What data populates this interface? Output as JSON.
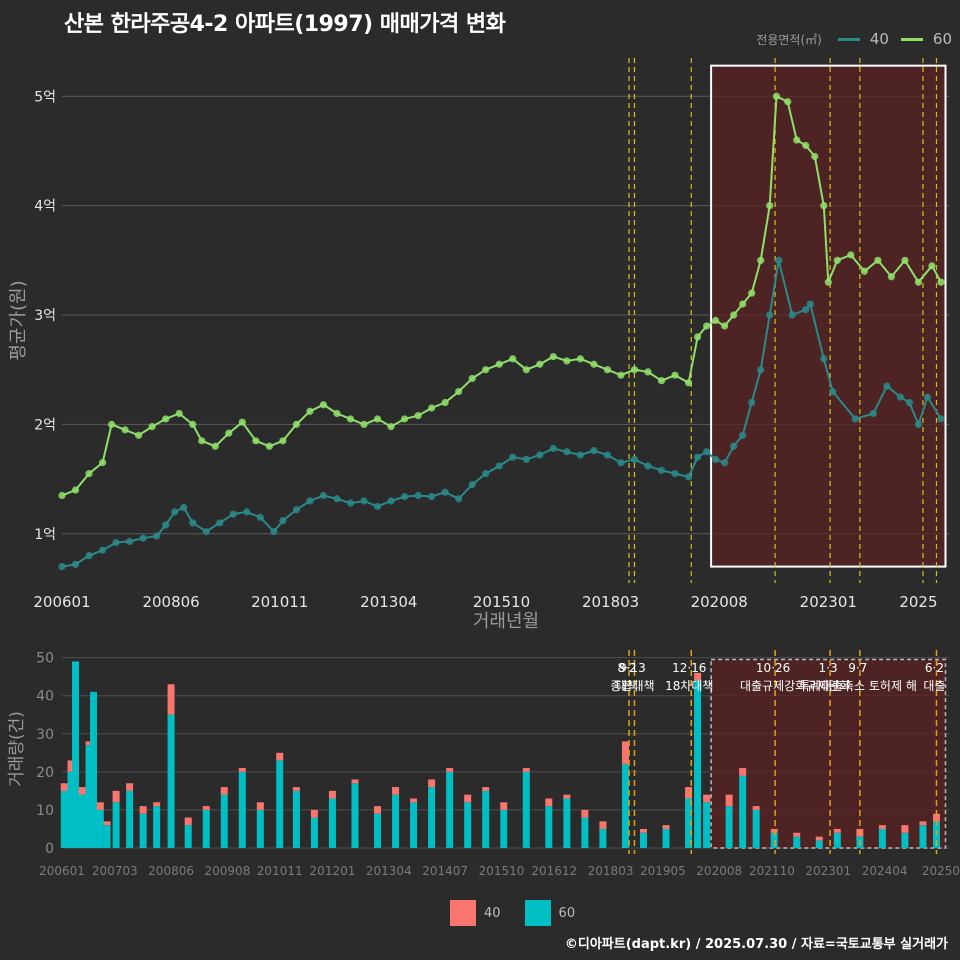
{
  "title": "산본 한라주공4-2 아파트(1997) 매매가격 변화",
  "legend": {
    "title": "전용면적(㎡)",
    "items": [
      {
        "label": "40",
        "line_color": "#2a8a8a",
        "bar_color": "#f8766d"
      },
      {
        "label": "60",
        "line_color": "#8fe06a",
        "bar_color": "#00bfc4"
      }
    ]
  },
  "footer": "©디아파트(dapt.kr) / 2025.07.30 / 자료=국토교통부 실거래가",
  "chart_data": [
    {
      "type": "line",
      "ylabel": "평균가(원)",
      "xlabel": "거래년월",
      "ylim": [
        0.55,
        5.35
      ],
      "xlim": [
        2006.0,
        2025.7
      ],
      "y_ticks": [
        {
          "v": 1,
          "label": "1억"
        },
        {
          "v": 2,
          "label": "2억"
        },
        {
          "v": 3,
          "label": "3억"
        },
        {
          "v": 4,
          "label": "4억"
        },
        {
          "v": 5,
          "label": "5억"
        }
      ],
      "x_ticks": [
        {
          "v": 2006.0,
          "label": "200601"
        },
        {
          "v": 2008.42,
          "label": "200806"
        },
        {
          "v": 2010.83,
          "label": "201011"
        },
        {
          "v": 2013.25,
          "label": "201304"
        },
        {
          "v": 2015.75,
          "label": "201510"
        },
        {
          "v": 2018.17,
          "label": "201803"
        },
        {
          "v": 2020.58,
          "label": "202008"
        },
        {
          "v": 2023.0,
          "label": "202301"
        },
        {
          "v": 2025.0,
          "label": "2025"
        }
      ],
      "highlight": {
        "x0": 2020.4,
        "x1": 2025.6,
        "y0": 0.7,
        "y1": 5.28,
        "color": "#5a2222"
      },
      "policy_lines": [
        2018.58,
        2018.7,
        2019.96,
        2021.82,
        2023.04,
        2023.7,
        2025.1,
        2025.4
      ],
      "series": [
        {
          "name": "40",
          "color": "#2a8a8a",
          "points": [
            [
              2006.0,
              0.7
            ],
            [
              2006.3,
              0.72
            ],
            [
              2006.6,
              0.8
            ],
            [
              2006.9,
              0.85
            ],
            [
              2007.2,
              0.92
            ],
            [
              2007.5,
              0.93
            ],
            [
              2007.8,
              0.96
            ],
            [
              2008.1,
              0.98
            ],
            [
              2008.3,
              1.08
            ],
            [
              2008.5,
              1.2
            ],
            [
              2008.7,
              1.24
            ],
            [
              2008.9,
              1.1
            ],
            [
              2009.2,
              1.02
            ],
            [
              2009.5,
              1.1
            ],
            [
              2009.8,
              1.18
            ],
            [
              2010.1,
              1.2
            ],
            [
              2010.4,
              1.15
            ],
            [
              2010.7,
              1.02
            ],
            [
              2010.9,
              1.12
            ],
            [
              2011.2,
              1.22
            ],
            [
              2011.5,
              1.3
            ],
            [
              2011.8,
              1.35
            ],
            [
              2012.1,
              1.32
            ],
            [
              2012.4,
              1.28
            ],
            [
              2012.7,
              1.3
            ],
            [
              2013.0,
              1.25
            ],
            [
              2013.3,
              1.3
            ],
            [
              2013.6,
              1.34
            ],
            [
              2013.9,
              1.35
            ],
            [
              2014.2,
              1.34
            ],
            [
              2014.5,
              1.38
            ],
            [
              2014.8,
              1.32
            ],
            [
              2015.1,
              1.45
            ],
            [
              2015.4,
              1.55
            ],
            [
              2015.7,
              1.62
            ],
            [
              2016.0,
              1.7
            ],
            [
              2016.3,
              1.68
            ],
            [
              2016.6,
              1.72
            ],
            [
              2016.9,
              1.78
            ],
            [
              2017.2,
              1.75
            ],
            [
              2017.5,
              1.72
            ],
            [
              2017.8,
              1.76
            ],
            [
              2018.1,
              1.72
            ],
            [
              2018.4,
              1.65
            ],
            [
              2018.7,
              1.68
            ],
            [
              2019.0,
              1.62
            ],
            [
              2019.3,
              1.58
            ],
            [
              2019.6,
              1.55
            ],
            [
              2019.9,
              1.52
            ],
            [
              2020.1,
              1.7
            ],
            [
              2020.3,
              1.75
            ],
            [
              2020.5,
              1.68
            ],
            [
              2020.7,
              1.65
            ],
            [
              2020.9,
              1.8
            ],
            [
              2021.1,
              1.9
            ],
            [
              2021.3,
              2.2
            ],
            [
              2021.5,
              2.5
            ],
            [
              2021.7,
              3.0
            ],
            [
              2021.9,
              3.5
            ],
            [
              2022.2,
              3.0
            ],
            [
              2022.5,
              3.05
            ],
            [
              2022.6,
              3.1
            ],
            [
              2022.9,
              2.6
            ],
            [
              2023.1,
              2.3
            ],
            [
              2023.6,
              2.05
            ],
            [
              2024.0,
              2.1
            ],
            [
              2024.3,
              2.35
            ],
            [
              2024.6,
              2.25
            ],
            [
              2024.8,
              2.2
            ],
            [
              2025.0,
              2.0
            ],
            [
              2025.2,
              2.25
            ],
            [
              2025.5,
              2.05
            ]
          ]
        },
        {
          "name": "60",
          "color": "#8fe06a",
          "points": [
            [
              2006.0,
              1.35
            ],
            [
              2006.3,
              1.4
            ],
            [
              2006.6,
              1.55
            ],
            [
              2006.9,
              1.65
            ],
            [
              2007.1,
              2.0
            ],
            [
              2007.4,
              1.95
            ],
            [
              2007.7,
              1.9
            ],
            [
              2008.0,
              1.98
            ],
            [
              2008.3,
              2.05
            ],
            [
              2008.6,
              2.1
            ],
            [
              2008.9,
              2.0
            ],
            [
              2009.1,
              1.85
            ],
            [
              2009.4,
              1.8
            ],
            [
              2009.7,
              1.92
            ],
            [
              2010.0,
              2.02
            ],
            [
              2010.3,
              1.85
            ],
            [
              2010.6,
              1.8
            ],
            [
              2010.9,
              1.85
            ],
            [
              2011.2,
              2.0
            ],
            [
              2011.5,
              2.12
            ],
            [
              2011.8,
              2.18
            ],
            [
              2012.1,
              2.1
            ],
            [
              2012.4,
              2.05
            ],
            [
              2012.7,
              2.0
            ],
            [
              2013.0,
              2.05
            ],
            [
              2013.3,
              1.98
            ],
            [
              2013.6,
              2.05
            ],
            [
              2013.9,
              2.08
            ],
            [
              2014.2,
              2.15
            ],
            [
              2014.5,
              2.2
            ],
            [
              2014.8,
              2.3
            ],
            [
              2015.1,
              2.42
            ],
            [
              2015.4,
              2.5
            ],
            [
              2015.7,
              2.55
            ],
            [
              2016.0,
              2.6
            ],
            [
              2016.3,
              2.5
            ],
            [
              2016.6,
              2.55
            ],
            [
              2016.9,
              2.62
            ],
            [
              2017.2,
              2.58
            ],
            [
              2017.5,
              2.6
            ],
            [
              2017.8,
              2.55
            ],
            [
              2018.1,
              2.5
            ],
            [
              2018.4,
              2.45
            ],
            [
              2018.7,
              2.5
            ],
            [
              2019.0,
              2.48
            ],
            [
              2019.3,
              2.4
            ],
            [
              2019.6,
              2.45
            ],
            [
              2019.9,
              2.38
            ],
            [
              2020.1,
              2.8
            ],
            [
              2020.3,
              2.9
            ],
            [
              2020.5,
              2.95
            ],
            [
              2020.7,
              2.9
            ],
            [
              2020.9,
              3.0
            ],
            [
              2021.1,
              3.1
            ],
            [
              2021.3,
              3.2
            ],
            [
              2021.5,
              3.5
            ],
            [
              2021.7,
              4.0
            ],
            [
              2021.85,
              5.0
            ],
            [
              2022.1,
              4.95
            ],
            [
              2022.3,
              4.6
            ],
            [
              2022.5,
              4.55
            ],
            [
              2022.7,
              4.45
            ],
            [
              2022.9,
              4.0
            ],
            [
              2023.0,
              3.3
            ],
            [
              2023.2,
              3.5
            ],
            [
              2023.5,
              3.55
            ],
            [
              2023.8,
              3.4
            ],
            [
              2024.1,
              3.5
            ],
            [
              2024.4,
              3.35
            ],
            [
              2024.7,
              3.5
            ],
            [
              2025.0,
              3.3
            ],
            [
              2025.3,
              3.45
            ],
            [
              2025.5,
              3.3
            ]
          ]
        }
      ]
    },
    {
      "type": "bar",
      "ylabel": "거래량(건)",
      "ylim": [
        0,
        52
      ],
      "y_ticks": [
        0,
        10,
        20,
        30,
        40,
        50
      ],
      "x_ticks": [
        {
          "v": 2006.0,
          "label": "200601"
        },
        {
          "v": 2007.17,
          "label": "200703"
        },
        {
          "v": 2008.42,
          "label": "200806"
        },
        {
          "v": 2009.67,
          "label": "200908"
        },
        {
          "v": 2010.83,
          "label": "201011"
        },
        {
          "v": 2012.0,
          "label": "201201"
        },
        {
          "v": 2013.25,
          "label": "201304"
        },
        {
          "v": 2014.5,
          "label": "201407"
        },
        {
          "v": 2015.75,
          "label": "201510"
        },
        {
          "v": 2016.92,
          "label": "201612"
        },
        {
          "v": 2018.17,
          "label": "201803"
        },
        {
          "v": 2019.33,
          "label": "201905"
        },
        {
          "v": 2020.58,
          "label": "202008"
        },
        {
          "v": 2021.75,
          "label": "202110"
        },
        {
          "v": 2023.0,
          "label": "202301"
        },
        {
          "v": 2024.25,
          "label": "202404"
        },
        {
          "v": 2025.5,
          "label": "20250"
        }
      ],
      "bars": [
        {
          "x": 2006.05,
          "v40": 2,
          "v60": 15
        },
        {
          "x": 2006.2,
          "v40": 3,
          "v60": 20
        },
        {
          "x": 2006.3,
          "v40": 0,
          "v60": 49
        },
        {
          "x": 2006.45,
          "v40": 2,
          "v60": 14
        },
        {
          "x": 2006.6,
          "v40": 1,
          "v60": 27
        },
        {
          "x": 2006.7,
          "v40": 0,
          "v60": 41
        },
        {
          "x": 2006.85,
          "v40": 2,
          "v60": 10
        },
        {
          "x": 2007.0,
          "v40": 1,
          "v60": 6
        },
        {
          "x": 2007.2,
          "v40": 3,
          "v60": 12
        },
        {
          "x": 2007.5,
          "v40": 2,
          "v60": 15
        },
        {
          "x": 2007.8,
          "v40": 2,
          "v60": 9
        },
        {
          "x": 2008.1,
          "v40": 1,
          "v60": 11
        },
        {
          "x": 2008.42,
          "v40": 8,
          "v60": 35
        },
        {
          "x": 2008.8,
          "v40": 2,
          "v60": 6
        },
        {
          "x": 2009.2,
          "v40": 1,
          "v60": 10
        },
        {
          "x": 2009.6,
          "v40": 2,
          "v60": 14
        },
        {
          "x": 2010.0,
          "v40": 1,
          "v60": 20
        },
        {
          "x": 2010.4,
          "v40": 2,
          "v60": 10
        },
        {
          "x": 2010.83,
          "v40": 2,
          "v60": 23
        },
        {
          "x": 2011.2,
          "v40": 1,
          "v60": 15
        },
        {
          "x": 2011.6,
          "v40": 2,
          "v60": 8
        },
        {
          "x": 2012.0,
          "v40": 2,
          "v60": 13
        },
        {
          "x": 2012.5,
          "v40": 1,
          "v60": 17
        },
        {
          "x": 2013.0,
          "v40": 2,
          "v60": 9
        },
        {
          "x": 2013.4,
          "v40": 2,
          "v60": 14
        },
        {
          "x": 2013.8,
          "v40": 1,
          "v60": 12
        },
        {
          "x": 2014.2,
          "v40": 2,
          "v60": 16
        },
        {
          "x": 2014.6,
          "v40": 1,
          "v60": 20
        },
        {
          "x": 2015.0,
          "v40": 2,
          "v60": 12
        },
        {
          "x": 2015.4,
          "v40": 1,
          "v60": 15
        },
        {
          "x": 2015.8,
          "v40": 2,
          "v60": 10
        },
        {
          "x": 2016.3,
          "v40": 1,
          "v60": 20
        },
        {
          "x": 2016.8,
          "v40": 2,
          "v60": 11
        },
        {
          "x": 2017.2,
          "v40": 1,
          "v60": 13
        },
        {
          "x": 2017.6,
          "v40": 2,
          "v60": 8
        },
        {
          "x": 2018.0,
          "v40": 2,
          "v60": 5
        },
        {
          "x": 2018.5,
          "v40": 6,
          "v60": 22
        },
        {
          "x": 2018.9,
          "v40": 1,
          "v60": 4
        },
        {
          "x": 2019.4,
          "v40": 1,
          "v60": 5
        },
        {
          "x": 2019.9,
          "v40": 3,
          "v60": 13
        },
        {
          "x": 2020.1,
          "v40": 2,
          "v60": 44
        },
        {
          "x": 2020.3,
          "v40": 2,
          "v60": 12
        },
        {
          "x": 2020.8,
          "v40": 3,
          "v60": 11
        },
        {
          "x": 2021.1,
          "v40": 2,
          "v60": 19
        },
        {
          "x": 2021.4,
          "v40": 1,
          "v60": 10
        },
        {
          "x": 2021.8,
          "v40": 1,
          "v60": 4
        },
        {
          "x": 2022.3,
          "v40": 1,
          "v60": 3
        },
        {
          "x": 2022.8,
          "v40": 1,
          "v60": 2
        },
        {
          "x": 2023.2,
          "v40": 1,
          "v60": 4
        },
        {
          "x": 2023.7,
          "v40": 2,
          "v60": 3
        },
        {
          "x": 2024.2,
          "v40": 1,
          "v60": 5
        },
        {
          "x": 2024.7,
          "v40": 2,
          "v60": 4
        },
        {
          "x": 2025.1,
          "v40": 1,
          "v60": 6
        },
        {
          "x": 2025.4,
          "v40": 2,
          "v60": 7
        }
      ],
      "policies": [
        {
          "x": 2018.58,
          "date": "8·2",
          "label": "대책"
        },
        {
          "x": 2018.7,
          "date": "9·13",
          "label": "종합대책"
        },
        {
          "x": 2019.96,
          "date": "12·16",
          "label": "18차대책"
        },
        {
          "x": 2021.82,
          "date": "10·26",
          "label": "대출규제강화"
        },
        {
          "x": 2023.04,
          "date": "1·3",
          "label": "규제완화"
        },
        {
          "x": 2023.7,
          "date": "9·7",
          "label": "특례대출축소 토허제 해"
        },
        {
          "x": 2025.4,
          "date": "6·2",
          "label": "대출"
        }
      ]
    }
  ]
}
